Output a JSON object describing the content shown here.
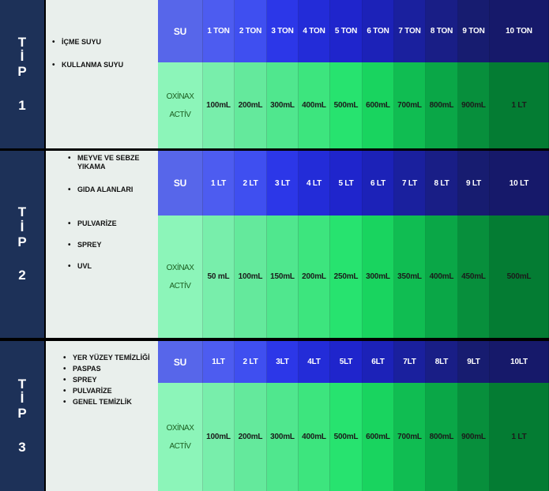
{
  "sections": [
    {
      "tip": [
        "T",
        "İ",
        "P",
        "1"
      ],
      "uses": [
        "İÇME SUYU",
        "KULLANMA SUYU"
      ],
      "su_label": "SU",
      "product": [
        "OXİNAX",
        "ACTİV"
      ],
      "amounts_top": [
        "1 TON",
        "2 TON",
        "3 TON",
        "4 TON",
        "5 TON",
        "6 TON",
        "7 TON",
        "8 TON",
        "9 TON",
        "10 TON"
      ],
      "amounts_bottom": [
        "100mL",
        "200mL",
        "300mL",
        "400mL",
        "500mL",
        "600mL",
        "700mL",
        "800mL",
        "900mL",
        "1 LT"
      ]
    },
    {
      "tip": [
        "T",
        "İ",
        "P",
        "2"
      ],
      "uses": [
        "MEYVE VE SEBZE YIKAMA",
        "GIDA ALANLARI",
        "PULVARİZE",
        "SPREY",
        "UVL"
      ],
      "su_label": "SU",
      "product": [
        "OXİNAX",
        "ACTİV"
      ],
      "amounts_top": [
        "1 LT",
        "2 LT",
        "3 LT",
        "4 LT",
        "5 LT",
        "6 LT",
        "7 LT",
        "8 LT",
        "9 LT",
        "10 LT"
      ],
      "amounts_bottom": [
        "50 mL",
        "100mL",
        "150mL",
        "200mL",
        "250mL",
        "300mL",
        "350mL",
        "400mL",
        "450mL",
        "500mL"
      ]
    },
    {
      "tip": [
        "T",
        "İ",
        "P",
        "3"
      ],
      "uses": [
        "YER YÜZEY TEMİZLİĞİ",
        "PASPAS",
        "SPREY",
        "PULVARİZE",
        "GENEL TEMİZLİK"
      ],
      "su_label": "SU",
      "product": [
        "OXİNAX",
        "ACTİV"
      ],
      "amounts_top": [
        "1LT",
        "2 LT",
        "3LT",
        "4LT",
        "5LT",
        "6LT",
        "7LT",
        "8LT",
        "9LT",
        "10LT"
      ],
      "amounts_bottom": [
        "100mL",
        "200mL",
        "300mL",
        "400mL",
        "500mL",
        "600mL",
        "700mL",
        "800mL",
        "900mL",
        "1 LT"
      ]
    }
  ],
  "colors": {
    "tip_bg": "#1d3158",
    "uses_bg": "#e9efec",
    "top_row": [
      "#5766ea",
      "#4d5cf0",
      "#3f4ff0",
      "#2c37e8",
      "#232cd8",
      "#1f25cc",
      "#1c22b8",
      "#1a209e",
      "#191e86",
      "#171c70",
      "#16196a"
    ],
    "bottom_row": [
      "#8cf5b9",
      "#78eeab",
      "#64e99c",
      "#50e78e",
      "#3de57e",
      "#27e36f",
      "#19d45f",
      "#10bd52",
      "#0aa747",
      "#078f3c",
      "#047c33"
    ]
  }
}
